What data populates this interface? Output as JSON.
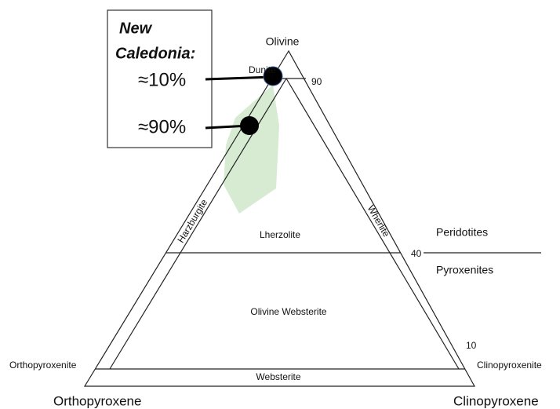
{
  "apex_labels": {
    "top": "Olivine",
    "left": "Orthopyroxene",
    "right": "Clinopyroxene"
  },
  "fields": {
    "dunite": "Dunite",
    "harzburgite": "Harzburgite",
    "wherlite": "Wherlite",
    "lherzolite": "Lherzolite",
    "olivine_websterite": "Olivine Websterite",
    "websterite": "Websterite",
    "orthopyroxenite": "Orthopyroxenite",
    "clinopyroxenite": "Clinopyroxenite"
  },
  "scale": {
    "a": "90",
    "b": "40",
    "c": "10"
  },
  "groups": {
    "upper": "Peridotites",
    "lower": "Pyroxenites"
  },
  "callout": {
    "title_1": "New",
    "title_2": "Caledonia:",
    "point_1": "≈10%",
    "point_2": "≈90%"
  }
}
